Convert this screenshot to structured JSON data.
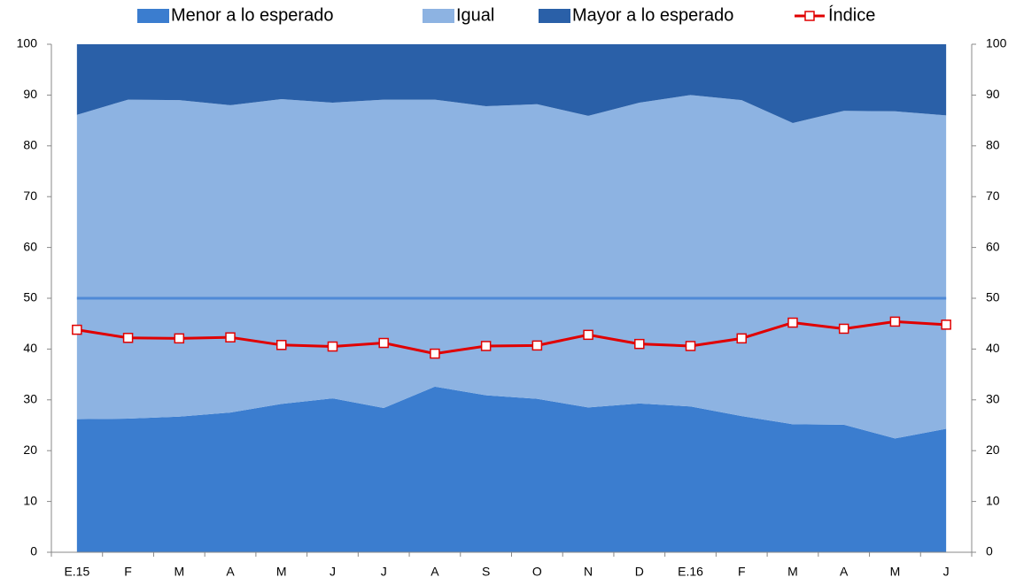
{
  "chart_data": {
    "type": "stacked_area_line",
    "categories": [
      "E.15",
      "F",
      "M",
      "A",
      "M",
      "J",
      "J",
      "A",
      "S",
      "O",
      "N",
      "D",
      "E.16",
      "F",
      "M",
      "A",
      "M",
      "J"
    ],
    "series": [
      {
        "name": "Menor a lo esperado",
        "color": "#3b7dcf",
        "values": [
          26.2,
          26.3,
          26.7,
          27.5,
          29.2,
          30.3,
          28.4,
          32.6,
          30.9,
          30.2,
          28.5,
          29.3,
          28.7,
          26.8,
          25.2,
          25.1,
          22.4,
          24.3
        ]
      },
      {
        "name": "Igual",
        "color": "#8db3e2",
        "values": [
          59.9,
          62.8,
          62.3,
          60.5,
          60.0,
          58.2,
          60.7,
          56.5,
          56.9,
          58.0,
          57.4,
          59.2,
          61.3,
          62.2,
          59.3,
          61.8,
          64.4,
          61.7
        ]
      },
      {
        "name": "Mayor a lo esperado",
        "color": "#2a60a8",
        "values": [
          13.9,
          10.9,
          11.0,
          12.0,
          10.8,
          11.5,
          10.9,
          10.9,
          12.2,
          11.8,
          14.1,
          11.5,
          10.0,
          11.0,
          15.5,
          13.1,
          13.2,
          14.0
        ]
      },
      {
        "name": "Índice",
        "color": "#e00000",
        "axis": "y2",
        "values": [
          43.8,
          42.2,
          42.1,
          42.3,
          40.8,
          40.5,
          41.2,
          39.1,
          40.6,
          40.7,
          42.8,
          41.0,
          40.6,
          42.1,
          45.2,
          44.0,
          45.4,
          44.8
        ]
      }
    ],
    "reference_line": 50,
    "ylim": [
      0,
      100
    ],
    "yticks": [
      0,
      10,
      20,
      30,
      40,
      50,
      60,
      70,
      80,
      90,
      100
    ],
    "y2lim": [
      0,
      100
    ],
    "y2ticks": [
      0,
      10,
      20,
      30,
      40,
      50,
      60,
      70,
      80,
      90,
      100
    ]
  }
}
